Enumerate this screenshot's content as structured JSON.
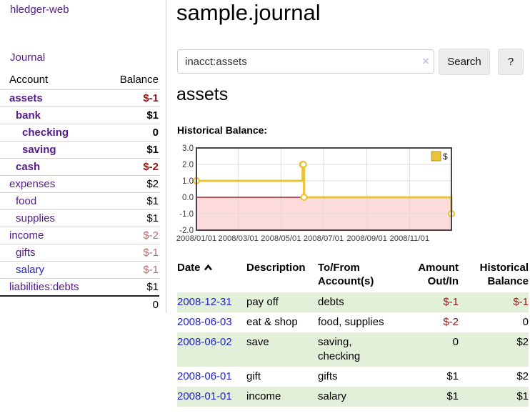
{
  "colors": {
    "link_purple": "#551a8b",
    "link_blue": "#2222cc",
    "negative_strong": "#8b1a1a",
    "negative_light": "#b06e6e",
    "row_green": "#e2efd9",
    "chart_line": "#e9c339",
    "chart_negative_fill": "#fbdbdb",
    "chart_zero_line": "#8b0000"
  },
  "sidebar": {
    "brand": "hledger-web",
    "journal_link": "Journal",
    "account_header": "Account",
    "balance_header": "Balance",
    "accounts": [
      {
        "name": "assets",
        "level": 1,
        "bold": true,
        "balance": "$-1",
        "neg": "strong"
      },
      {
        "name": "bank",
        "level": 2,
        "bold": true,
        "balance": "$1",
        "neg": "none"
      },
      {
        "name": "checking",
        "level": 3,
        "bold": true,
        "balance": "0",
        "neg": "none"
      },
      {
        "name": "saving",
        "level": 3,
        "bold": true,
        "balance": "$1",
        "neg": "none"
      },
      {
        "name": "cash",
        "level": 2,
        "bold": true,
        "balance": "$-2",
        "neg": "strong"
      },
      {
        "name": "expenses",
        "level": 1,
        "bold": false,
        "balance": "$2",
        "neg": "none"
      },
      {
        "name": "food",
        "level": 2,
        "bold": false,
        "balance": "$1",
        "neg": "none"
      },
      {
        "name": "supplies",
        "level": 2,
        "bold": false,
        "balance": "$1",
        "neg": "none"
      },
      {
        "name": "income",
        "level": 1,
        "bold": false,
        "balance": "$-2",
        "neg": "light"
      },
      {
        "name": "gifts",
        "level": 2,
        "bold": false,
        "balance": "$-1",
        "neg": "light"
      },
      {
        "name": "salary",
        "level": 2,
        "bold": false,
        "balance": "$-1",
        "neg": "light",
        "link_blue": true
      },
      {
        "name": "liabilities:debts",
        "level": 1,
        "bold": false,
        "balance": "$1",
        "neg": "none"
      }
    ],
    "total": "0"
  },
  "main": {
    "title": "sample.journal",
    "search": {
      "value": "inacct:assets",
      "clear_icon": "×",
      "search_button": "Search",
      "help_button": "?"
    },
    "account_heading": "assets",
    "chart_label": "Historical Balance:"
  },
  "chart_data": {
    "type": "line",
    "step": true,
    "title": "Historical Balance",
    "legend": [
      {
        "label": "$",
        "color": "#e9c339"
      }
    ],
    "legend_position": "top-right",
    "ylim": [
      -2,
      3
    ],
    "yticks": [
      "3.0",
      "2.0",
      "1.0",
      "0.0",
      "-1.0",
      "-2.0"
    ],
    "ytick_values": [
      3,
      2,
      1,
      0,
      -1,
      -2
    ],
    "xticks": [
      "2008/01/01",
      "2008/03/01",
      "2008/05/01",
      "2008/07/01",
      "2008/09/01",
      "2008/11/01"
    ],
    "xtick_days": [
      0,
      60,
      121,
      182,
      244,
      305
    ],
    "xrange_days": 365,
    "grid": true,
    "negative_region_shaded": true,
    "series": [
      {
        "name": "$",
        "points": [
          {
            "date": "2008-01-01",
            "day": 0,
            "value": 1
          },
          {
            "date": "2008-06-01",
            "day": 152,
            "value": 2
          },
          {
            "date": "2008-06-02",
            "day": 153,
            "value": 2
          },
          {
            "date": "2008-06-03",
            "day": 154,
            "value": 0
          },
          {
            "date": "2008-12-31",
            "day": 365,
            "value": -1
          }
        ]
      }
    ]
  },
  "register": {
    "headers": {
      "date": "Date",
      "sort": "ascending",
      "description": "Description",
      "accounts": [
        "To/From",
        "Account(s)"
      ],
      "amount": [
        "Amount",
        "Out/In"
      ],
      "balance": [
        "Historical",
        "Balance"
      ]
    },
    "rows": [
      {
        "date": "2008-12-31",
        "description": "pay off",
        "accounts": "debts",
        "amount": "$-1",
        "amount_neg": true,
        "balance": "$-1",
        "balance_neg": true
      },
      {
        "date": "2008-06-03",
        "description": "eat & shop",
        "accounts": "food, supplies",
        "amount": "$-2",
        "amount_neg": true,
        "balance": "0",
        "balance_neg": false
      },
      {
        "date": "2008-06-02",
        "description": "save",
        "accounts": "saving, checking",
        "amount": "0",
        "amount_neg": false,
        "balance": "$2",
        "balance_neg": false
      },
      {
        "date": "2008-06-01",
        "description": "gift",
        "accounts": "gifts",
        "amount": "$1",
        "amount_neg": false,
        "balance": "$2",
        "balance_neg": false
      },
      {
        "date": "2008-01-01",
        "description": "income",
        "accounts": "salary",
        "amount": "$1",
        "amount_neg": false,
        "balance": "$1",
        "balance_neg": false
      }
    ]
  }
}
